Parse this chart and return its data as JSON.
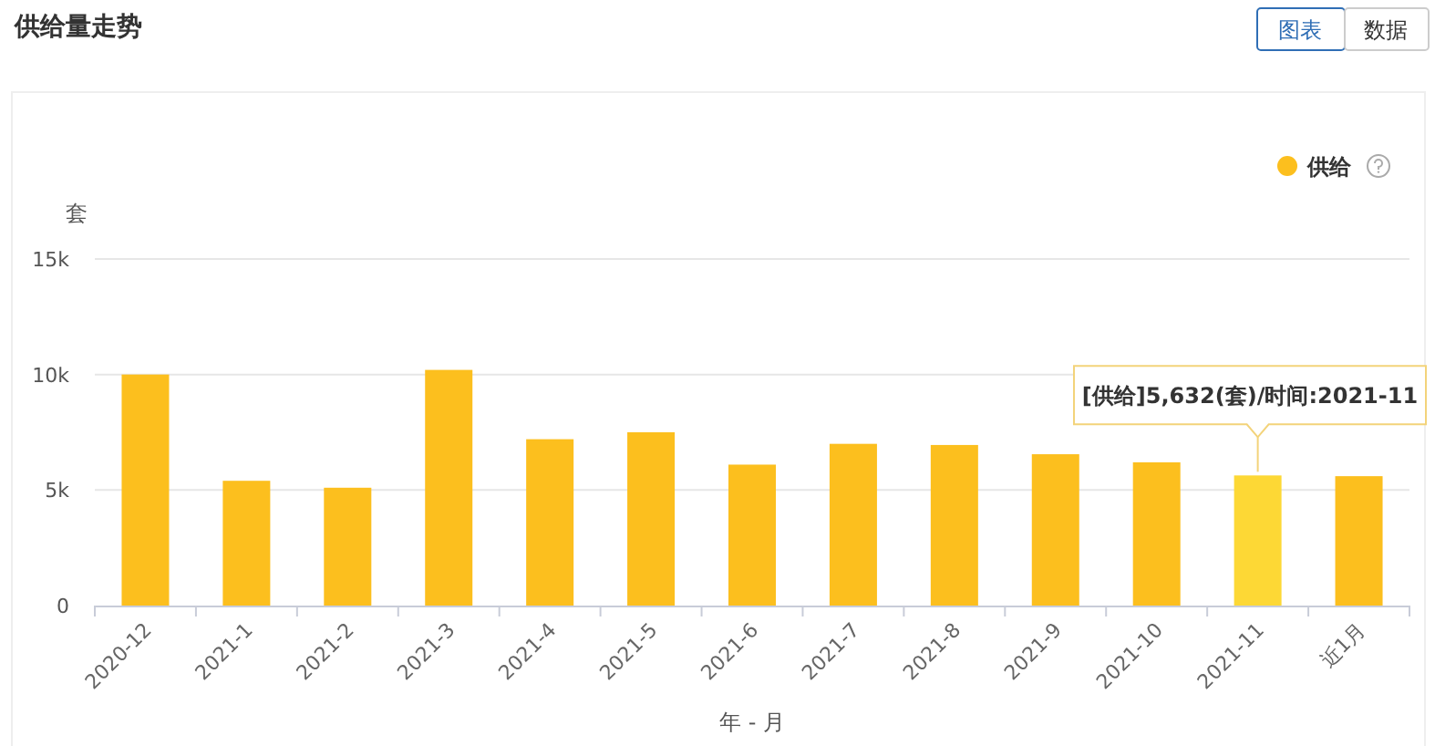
{
  "chart_data": {
    "type": "bar",
    "title": "供给量走势",
    "categories": [
      "2020-12",
      "2021-1",
      "2021-2",
      "2021-3",
      "2021-4",
      "2021-5",
      "2021-6",
      "2021-7",
      "2021-8",
      "2021-9",
      "2021-10",
      "2021-11",
      "近1月"
    ],
    "series": [
      {
        "name": "供给",
        "color": "#fcbf1e",
        "colors": [
          "#fcbf1e",
          "#fcbf1e",
          "#fcbf1e",
          "#fcbf1e",
          "#fcbf1e",
          "#fcbf1e",
          "#fcbf1e",
          "#fcbf1e",
          "#fcbf1e",
          "#fcbf1e",
          "#fcbf1e",
          "#fdd835",
          "#fcbf1e"
        ],
        "values": [
          10000,
          5400,
          5100,
          10200,
          7200,
          7500,
          6100,
          7000,
          6950,
          6550,
          6200,
          5632,
          5600
        ]
      }
    ],
    "ylabel": "套",
    "xlabel": "年 - 月",
    "ylim": [
      0,
      15000
    ],
    "yticks": [
      {
        "value": 0,
        "label": "0"
      },
      {
        "value": 5000,
        "label": "5k"
      },
      {
        "value": 10000,
        "label": "10k"
      },
      {
        "value": 15000,
        "label": "15k"
      }
    ],
    "grid": "y",
    "legend": "top right",
    "annotations": [
      {
        "text": "[供给]5,632(套)/时间:2021-11",
        "x": "2021-11",
        "y": 5632
      },
      "图表",
      "数据"
    ]
  }
}
